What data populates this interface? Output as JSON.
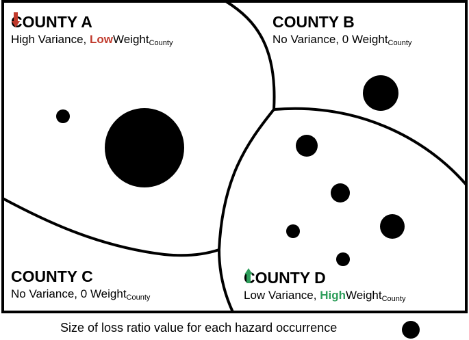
{
  "counties": [
    {
      "name": "COUNTY A",
      "description": "High Variance,",
      "emphasis": "Low",
      "weight": "Weight",
      "subscript": "County"
    },
    {
      "name": "COUNTY B",
      "description": "No Variance, 0",
      "weight": "Weight",
      "subscript": "County"
    },
    {
      "name": "COUNTY C",
      "description": "No Variance, 0",
      "weight": "Weight",
      "subscript": "County"
    },
    {
      "name": "COUNTY D",
      "description": "Low Variance,",
      "emphasis": "High",
      "weight": "Weight",
      "subscript": "County"
    }
  ],
  "legend": {
    "text": "Size of loss ratio value for each hazard occurrence"
  }
}
